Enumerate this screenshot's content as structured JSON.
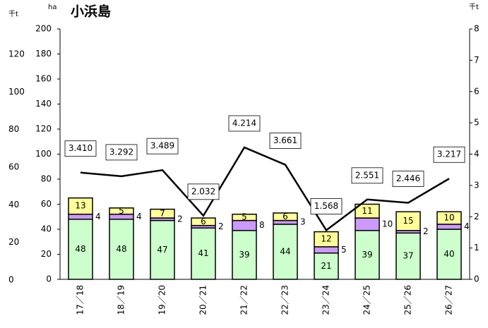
{
  "chart_data": {
    "type": "bar",
    "title": "小浜島",
    "y_unit": "ha",
    "y2_unit": "千t",
    "y3_unit": "千t",
    "categories": [
      "17／18",
      "18／19",
      "19／20",
      "20／21",
      "21／22",
      "22／23",
      "23／24",
      "24／25",
      "25／26",
      "26／27"
    ],
    "series": [
      {
        "color": "#ccffcc",
        "values": [
          48,
          48,
          47,
          41,
          39,
          44,
          21,
          39,
          37,
          40
        ]
      },
      {
        "color": "#cc99ff",
        "values": [
          4,
          4,
          2,
          2,
          8,
          3,
          5,
          10,
          2,
          4
        ]
      },
      {
        "color": "#ffff99",
        "values": [
          13,
          5,
          7,
          6,
          5,
          6,
          12,
          11,
          15,
          10
        ]
      },
      {
        "type": "line",
        "axis": "y2",
        "color": "#000000",
        "values": [
          3.41,
          3.292,
          3.489,
          2.032,
          4.214,
          3.661,
          1.568,
          2.551,
          2.446,
          3.217
        ],
        "value_labels": [
          "3.410",
          "3.292",
          "3.489",
          "2.032",
          "4.214",
          "3.661",
          "1.568",
          "2.551",
          "2.446",
          "3.217"
        ]
      }
    ],
    "ylim": [
      0,
      200
    ],
    "yticks": [
      0,
      20,
      40,
      60,
      80,
      100,
      120,
      140,
      160,
      180,
      200
    ],
    "y2lim": [
      0,
      8
    ],
    "y2ticks": [
      0,
      1,
      2,
      3,
      4,
      5,
      6,
      7,
      8
    ],
    "y3lim": [
      0,
      120
    ],
    "y3ticks": [
      0,
      20,
      40,
      60,
      80,
      100,
      120
    ]
  }
}
